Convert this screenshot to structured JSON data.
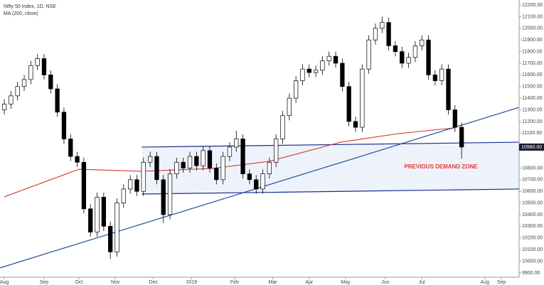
{
  "chart_data": {
    "type": "candlestick",
    "title": "Nifty 50 Index, 1D, NSE",
    "subtitle": "MA (200, close)",
    "x": [
      0,
      4,
      8,
      12,
      16,
      20,
      24,
      28,
      32,
      36,
      40,
      44,
      48,
      52,
      56,
      60,
      64,
      68,
      72,
      76,
      80,
      84,
      88,
      92,
      96,
      100,
      104,
      108,
      112,
      116,
      120,
      124,
      128,
      132,
      136,
      140,
      144,
      148,
      152,
      156,
      160,
      164,
      168,
      172,
      176,
      180,
      184,
      188,
      192,
      196,
      200,
      204,
      208,
      212,
      216,
      220,
      224,
      228,
      232,
      236,
      240,
      244,
      248,
      252,
      256,
      260,
      264,
      268,
      272,
      276
    ],
    "open": [
      11300,
      11350,
      11420,
      11500,
      11560,
      11680,
      11740,
      11600,
      11480,
      11280,
      11050,
      10900,
      10850,
      10450,
      10250,
      10550,
      10300,
      10080,
      10500,
      10620,
      10700,
      10600,
      10850,
      10900,
      10700,
      10400,
      10750,
      10850,
      10800,
      10900,
      10820,
      10950,
      10800,
      10700,
      10900,
      10980,
      11050,
      10750,
      10700,
      10620,
      10750,
      10850,
      11050,
      11250,
      11400,
      11550,
      11650,
      11620,
      11640,
      11720,
      11760,
      11700,
      11500,
      11200,
      11150,
      11650,
      11900,
      12000,
      12050,
      11850,
      11800,
      11700,
      11750,
      11850,
      11900,
      11600,
      11550,
      11650,
      11300,
      11150
    ],
    "high": [
      11390,
      11460,
      11540,
      11600,
      11720,
      11780,
      11780,
      11640,
      11520,
      11320,
      11090,
      10940,
      10890,
      10490,
      10590,
      10590,
      10340,
      10540,
      10660,
      10740,
      10740,
      10890,
      10940,
      10940,
      10740,
      10790,
      10890,
      10890,
      10940,
      10940,
      10990,
      10990,
      10840,
      10940,
      11020,
      11120,
      11090,
      10790,
      10740,
      10790,
      10890,
      11090,
      11290,
      11440,
      11590,
      11690,
      11690,
      11680,
      11760,
      11800,
      11800,
      11740,
      11540,
      11240,
      11690,
      11940,
      12040,
      12100,
      12090,
      11890,
      11840,
      11790,
      11890,
      11940,
      11940,
      11640,
      11690,
      11690,
      11340,
      11190
    ],
    "low": [
      11260,
      11310,
      11380,
      11460,
      11520,
      11640,
      11560,
      11440,
      11240,
      11010,
      10860,
      10810,
      10410,
      10210,
      10210,
      10260,
      10020,
      10040,
      10460,
      10580,
      10560,
      10560,
      10810,
      10660,
      10330,
      10360,
      10710,
      10760,
      10760,
      10780,
      10780,
      10760,
      10660,
      10660,
      10860,
      10940,
      10710,
      10660,
      10580,
      10580,
      10710,
      10810,
      11010,
      11210,
      11360,
      11510,
      11580,
      11580,
      11600,
      11680,
      11660,
      11460,
      11160,
      11110,
      11110,
      11610,
      11860,
      11960,
      11810,
      11760,
      11660,
      11660,
      11710,
      11810,
      11560,
      11510,
      11510,
      11260,
      11110,
      10880
    ],
    "close": [
      11350,
      11420,
      11500,
      11560,
      11680,
      11740,
      11600,
      11480,
      11280,
      11050,
      10900,
      10850,
      10450,
      10250,
      10550,
      10300,
      10080,
      10500,
      10620,
      10700,
      10600,
      10850,
      10900,
      10700,
      10400,
      10750,
      10850,
      10800,
      10900,
      10820,
      10950,
      10800,
      10700,
      10900,
      10980,
      11050,
      10750,
      10700,
      10620,
      10750,
      10850,
      11050,
      11250,
      11400,
      11550,
      11650,
      11620,
      11640,
      11720,
      11760,
      11700,
      11500,
      11200,
      11150,
      11650,
      11900,
      12000,
      12050,
      11850,
      11800,
      11700,
      11750,
      11850,
      11900,
      11600,
      11550,
      11650,
      11300,
      11150,
      10980
    ],
    "up_color": "#ffffff",
    "down_color": "#000000",
    "outline_color": "#000000",
    "ma": {
      "x": [
        0,
        45,
        83,
        126,
        160,
        203,
        238,
        272
      ],
      "values": [
        10553,
        10790,
        10772,
        10797,
        10858,
        11022,
        11096,
        11145
      ],
      "color": "#d9413a"
    },
    "zone": {
      "x": [
        83,
        311
      ],
      "upper": [
        10980,
        11022
      ],
      "lower": [
        10577,
        10620
      ],
      "color": "#1a2f8f",
      "fill": "#eef3fb"
    },
    "trend_line": {
      "x": [
        -2.6,
        310.7
      ],
      "y": [
        9943,
        11321
      ],
      "color": "#1f4e9c"
    },
    "annotation": {
      "text": "PREVIOUS DEMAND ZONE",
      "color": "#e53935"
    },
    "price_label": {
      "value": 10980,
      "label": "10980.00"
    },
    "xlim": [
      -2.6,
      310.7
    ],
    "xticks": [
      {
        "value": 0,
        "label": "Aug"
      },
      {
        "value": 24,
        "label": "Sep"
      },
      {
        "value": 45,
        "label": "Oct"
      },
      {
        "value": 67,
        "label": "Nov"
      },
      {
        "value": 90,
        "label": "Dec"
      },
      {
        "value": 113,
        "label": "2019"
      },
      {
        "value": 139,
        "label": "Feb"
      },
      {
        "value": 162,
        "label": "Mar"
      },
      {
        "value": 184,
        "label": "Apr"
      },
      {
        "value": 206,
        "label": "May"
      },
      {
        "value": 230,
        "label": "Jun"
      },
      {
        "value": 252,
        "label": "Jul"
      },
      {
        "value": 290,
        "label": "Aug"
      },
      {
        "value": 300,
        "label": "Sep"
      }
    ],
    "ylim": [
      9863,
      12243
    ],
    "yticks": [
      {
        "value": 9900,
        "label": "9900.00"
      },
      {
        "value": 10000,
        "label": "10000.00"
      },
      {
        "value": 10100,
        "label": "10100.00"
      },
      {
        "value": 10200,
        "label": "10200.00"
      },
      {
        "value": 10300,
        "label": "10300.00"
      },
      {
        "value": 10400,
        "label": "10400.00"
      },
      {
        "value": 10500,
        "label": "10500.00"
      },
      {
        "value": 10600,
        "label": "10600.00"
      },
      {
        "value": 10700,
        "label": "10700.00"
      },
      {
        "value": 10800,
        "label": "10800.00"
      },
      {
        "value": 11100,
        "label": "11100.00"
      },
      {
        "value": 11200,
        "label": "11200.00"
      },
      {
        "value": 11300,
        "label": "11300.00"
      },
      {
        "value": 11400,
        "label": "11400.00"
      },
      {
        "value": 11500,
        "label": "11500.00"
      },
      {
        "value": 11600,
        "label": "11600.00"
      },
      {
        "value": 11700,
        "label": "11700.00"
      },
      {
        "value": 11800,
        "label": "11800.00"
      },
      {
        "value": 11900,
        "label": "11900.00"
      },
      {
        "value": 12000,
        "label": "12000.00"
      },
      {
        "value": 12100,
        "label": "12100.00"
      },
      {
        "value": 12200,
        "label": "12200.00"
      }
    ],
    "grid": false
  }
}
